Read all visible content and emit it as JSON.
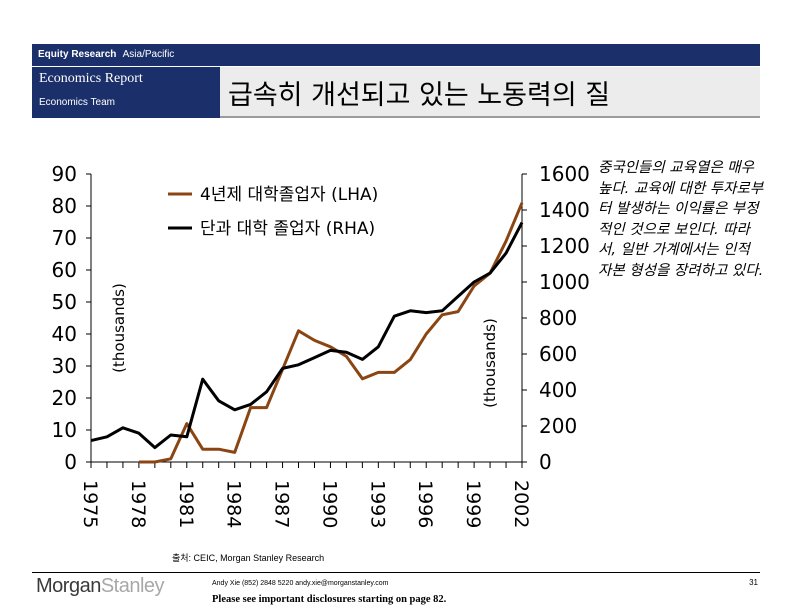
{
  "header": {
    "section": "Equity Research",
    "region": "Asia/Pacific",
    "report_name": "Economics Report",
    "team": "Economics Team",
    "title": "급속히 개선되고 있는 노동력의 질"
  },
  "commentary": "중국인들의 교육열은 매우 높다. 교육에 대한 투자로부터 발생하는 이익률은 부정적인 것으로 보인다. 따라서, 일반 가계에서는 인적 자본 형성을 장려하고 있다.",
  "source": "출처: CEIC, Morgan Stanley Research",
  "footer": {
    "logo_part1": "Morgan",
    "logo_part2": "Stanley",
    "contact": "Andy Xie (852) 2848 5220 andy.xie@morganstanley.com",
    "disclosure": "Please see important disclosures starting on page 82.",
    "page_number": "31"
  },
  "colors": {
    "navy": "#1b2f6b",
    "lha_series": "#8b4513",
    "rha_series": "#000000"
  },
  "chart_data": {
    "type": "line",
    "title": "",
    "x": [
      1975,
      1976,
      1977,
      1978,
      1979,
      1980,
      1981,
      1982,
      1983,
      1984,
      1985,
      1986,
      1987,
      1988,
      1989,
      1990,
      1991,
      1992,
      1993,
      1994,
      1995,
      1996,
      1997,
      1998,
      1999,
      2000,
      2001,
      2002
    ],
    "xticks": [
      "1975",
      "1978",
      "1981",
      "1984",
      "1987",
      "1990",
      "1993",
      "1996",
      "1999",
      "2002"
    ],
    "left_axis": {
      "label": "(thousands)",
      "ylim": [
        0,
        90
      ],
      "ticks": [
        "0",
        "10",
        "20",
        "30",
        "40",
        "50",
        "60",
        "70",
        "80",
        "90"
      ]
    },
    "right_axis": {
      "label": "(thousands)",
      "ylim": [
        0,
        1600
      ],
      "ticks": [
        "0",
        "200",
        "400",
        "600",
        "800",
        "1000",
        "1200",
        "1400",
        "1600"
      ]
    },
    "legend_position": "top-center",
    "series": [
      {
        "name": "4년제 대학졸업자 (LHA)",
        "axis": "left",
        "color": "#8b4513",
        "values": [
          null,
          null,
          null,
          0,
          0,
          1,
          12,
          4,
          4,
          3,
          17,
          17,
          29,
          41,
          38,
          36,
          33,
          26,
          28,
          28,
          32,
          40,
          46,
          47,
          55,
          59,
          69,
          81
        ]
      },
      {
        "name": "단과 대학 졸업자 (RHA)",
        "axis": "right",
        "color": "#000000",
        "values": [
          119,
          140,
          190,
          160,
          80,
          150,
          140,
          460,
          340,
          290,
          320,
          390,
          520,
          540,
          580,
          620,
          610,
          570,
          640,
          810,
          840,
          830,
          840,
          920,
          1000,
          1050,
          1160,
          1330
        ]
      }
    ]
  }
}
